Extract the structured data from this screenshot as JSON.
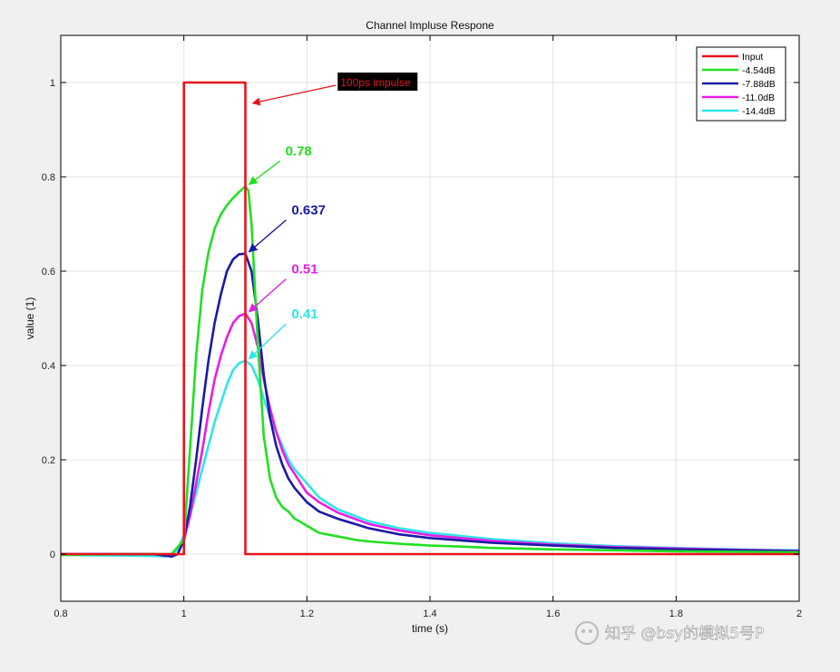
{
  "chart_data": {
    "type": "line",
    "title": "Channel Impluse Respone",
    "xlabel": "time (s)",
    "ylabel": "value (1)",
    "xlim": [
      0.8,
      2.0
    ],
    "ylim": [
      -0.1,
      1.1
    ],
    "xticks": [
      0.8,
      1.0,
      1.2,
      1.4,
      1.6,
      1.8,
      2.0
    ],
    "xtick_labels": [
      "0.8",
      "1",
      "1.2",
      "1.4",
      "1.6",
      "1.8",
      "2"
    ],
    "yticks": [
      0,
      0.2,
      0.4,
      0.6,
      0.8,
      1.0
    ],
    "ytick_labels": [
      "0",
      "0.2",
      "0.4",
      "0.6",
      "0.8",
      "1"
    ],
    "grid": true,
    "legend_position": "top-right",
    "series": [
      {
        "name": "Input",
        "color": "#e8141c",
        "x": [
          0.8,
          1.0,
          1.0,
          1.1,
          1.1,
          2.0
        ],
        "y": [
          0,
          0,
          1,
          1,
          0,
          0
        ]
      },
      {
        "name": "-4.54dB",
        "color": "#22e022",
        "x": [
          0.8,
          0.9,
          0.95,
          0.98,
          1.0,
          1.01,
          1.02,
          1.03,
          1.04,
          1.05,
          1.06,
          1.07,
          1.08,
          1.09,
          1.1,
          1.105,
          1.11,
          1.12,
          1.13,
          1.14,
          1.15,
          1.16,
          1.17,
          1.18,
          1.19,
          1.2,
          1.22,
          1.24,
          1.26,
          1.28,
          1.3,
          1.35,
          1.4,
          1.45,
          1.5,
          1.6,
          1.7,
          1.8,
          1.9,
          2.0
        ],
        "y": [
          -0.002,
          0.0,
          0.0,
          0.0,
          0.03,
          0.22,
          0.42,
          0.56,
          0.64,
          0.69,
          0.72,
          0.74,
          0.755,
          0.768,
          0.78,
          0.77,
          0.7,
          0.45,
          0.25,
          0.16,
          0.12,
          0.1,
          0.09,
          0.075,
          0.068,
          0.06,
          0.045,
          0.04,
          0.035,
          0.03,
          0.027,
          0.022,
          0.018,
          0.016,
          0.013,
          0.01,
          0.008,
          0.006,
          0.005,
          0.004
        ]
      },
      {
        "name": "-7.88dB",
        "color": "#1a1aa6",
        "x": [
          0.8,
          0.9,
          0.95,
          0.98,
          0.99,
          1.0,
          1.01,
          1.02,
          1.03,
          1.04,
          1.05,
          1.06,
          1.07,
          1.08,
          1.09,
          1.1,
          1.11,
          1.12,
          1.13,
          1.14,
          1.15,
          1.16,
          1.17,
          1.18,
          1.2,
          1.22,
          1.25,
          1.3,
          1.35,
          1.4,
          1.5,
          1.6,
          1.7,
          1.8,
          1.9,
          2.0
        ],
        "y": [
          0.0,
          0.0,
          0.0,
          -0.005,
          0.0,
          0.03,
          0.1,
          0.2,
          0.31,
          0.41,
          0.49,
          0.55,
          0.6,
          0.625,
          0.636,
          0.637,
          0.6,
          0.5,
          0.38,
          0.29,
          0.23,
          0.19,
          0.16,
          0.14,
          0.11,
          0.09,
          0.075,
          0.055,
          0.042,
          0.034,
          0.024,
          0.018,
          0.013,
          0.01,
          0.008,
          0.006
        ]
      },
      {
        "name": "-11.0dB",
        "color": "#e61ee6",
        "x": [
          0.8,
          0.9,
          0.95,
          0.98,
          0.99,
          1.0,
          1.01,
          1.02,
          1.03,
          1.04,
          1.05,
          1.06,
          1.07,
          1.08,
          1.09,
          1.1,
          1.11,
          1.12,
          1.13,
          1.14,
          1.15,
          1.16,
          1.17,
          1.18,
          1.2,
          1.22,
          1.25,
          1.3,
          1.35,
          1.4,
          1.5,
          1.6,
          1.7,
          1.8,
          1.9,
          2.0
        ],
        "y": [
          0.0,
          0.0,
          0.0,
          -0.005,
          0.0,
          0.03,
          0.08,
          0.15,
          0.22,
          0.3,
          0.37,
          0.42,
          0.46,
          0.49,
          0.505,
          0.51,
          0.49,
          0.44,
          0.37,
          0.31,
          0.26,
          0.22,
          0.19,
          0.17,
          0.13,
          0.11,
          0.088,
          0.064,
          0.05,
          0.04,
          0.028,
          0.02,
          0.015,
          0.012,
          0.009,
          0.007
        ]
      },
      {
        "name": "-14.4dB",
        "color": "#2ee6e6",
        "x": [
          0.8,
          0.9,
          0.95,
          0.97,
          0.98,
          0.99,
          1.0,
          1.01,
          1.02,
          1.03,
          1.04,
          1.05,
          1.06,
          1.07,
          1.08,
          1.09,
          1.1,
          1.11,
          1.12,
          1.13,
          1.14,
          1.15,
          1.16,
          1.17,
          1.18,
          1.2,
          1.22,
          1.25,
          1.3,
          1.35,
          1.4,
          1.5,
          1.6,
          1.7,
          1.8,
          1.9,
          2.0
        ],
        "y": [
          -0.002,
          -0.003,
          -0.004,
          -0.005,
          0.0,
          0.01,
          0.04,
          0.08,
          0.13,
          0.18,
          0.23,
          0.28,
          0.32,
          0.36,
          0.39,
          0.405,
          0.41,
          0.4,
          0.37,
          0.33,
          0.29,
          0.26,
          0.23,
          0.2,
          0.18,
          0.15,
          0.12,
          0.095,
          0.07,
          0.055,
          0.045,
          0.032,
          0.023,
          0.017,
          0.013,
          0.01,
          0.008
        ]
      }
    ],
    "annotations": [
      {
        "text": "100ps impulse",
        "color": "#e8141c",
        "style": "boxed-black",
        "point": [
          1.1,
          0.96
        ],
        "text_at": [
          1.25,
          1.0
        ]
      },
      {
        "text": "0.78",
        "color": "#22e022",
        "point": [
          1.1,
          0.78
        ],
        "text_at": [
          1.165,
          0.845
        ]
      },
      {
        "text": "0.637",
        "color": "#1a1aa6",
        "point": [
          1.1,
          0.637
        ],
        "text_at": [
          1.175,
          0.72
        ]
      },
      {
        "text": "0.51",
        "color": "#e61ee6",
        "point": [
          1.1,
          0.51
        ],
        "text_at": [
          1.175,
          0.595
        ]
      },
      {
        "text": "0.41",
        "color": "#2ee6e6",
        "point": [
          1.1,
          0.41
        ],
        "text_at": [
          1.175,
          0.5
        ]
      }
    ]
  },
  "watermark": {
    "text": "知乎 @bsy的模拟5号P"
  }
}
